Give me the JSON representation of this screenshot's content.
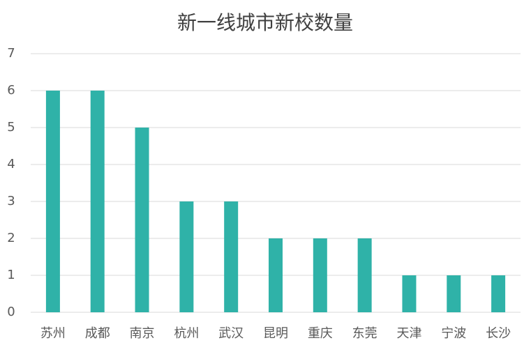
{
  "chart_data": {
    "type": "bar",
    "title": "新一线城市新校数量",
    "categories": [
      "苏州",
      "成都",
      "南京",
      "杭州",
      "武汉",
      "昆明",
      "重庆",
      "东莞",
      "天津",
      "宁波",
      "长沙"
    ],
    "values": [
      6,
      6,
      5,
      3,
      3,
      2,
      2,
      2,
      1,
      1,
      1
    ],
    "color": "#2fb2a8",
    "ylim": [
      0,
      7
    ],
    "yticks": [
      0,
      1,
      2,
      3,
      4,
      5,
      6,
      7
    ],
    "grid": true
  }
}
